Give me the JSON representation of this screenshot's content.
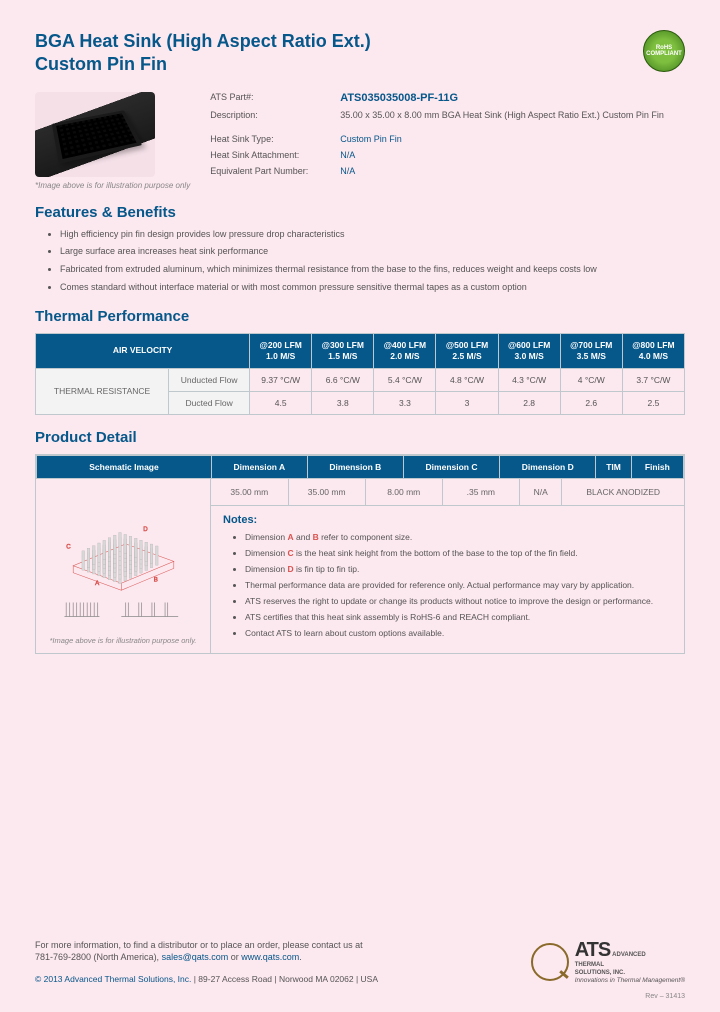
{
  "header": {
    "title_line1": "BGA Heat Sink (High Aspect Ratio Ext.)",
    "title_line2": "Custom Pin Fin",
    "rohs": "RoHS COMPLIANT"
  },
  "specs": {
    "part_label": "ATS Part#:",
    "part_value": "ATS035035008-PF-11G",
    "desc_label": "Description:",
    "desc_value": "35.00 x 35.00 x 8.00 mm  BGA Heat Sink (High Aspect Ratio Ext.) Custom Pin Fin",
    "type_label": "Heat Sink Type:",
    "type_value": "Custom Pin Fin",
    "attach_label": "Heat Sink Attachment:",
    "attach_value": "N/A",
    "equiv_label": "Equivalent Part Number:",
    "equiv_value": "N/A",
    "image_caption": "*Image above is for illustration purpose only"
  },
  "sections": {
    "features": "Features & Benefits",
    "thermal": "Thermal Performance",
    "detail": "Product Detail"
  },
  "features": [
    "High efficiency pin fin design provides low pressure drop characteristics",
    "Large surface area increases heat sink performance",
    "Fabricated from extruded aluminum, which minimizes thermal resistance from the base to the fins, reduces weight and keeps costs low",
    "Comes standard without interface material or with most common pressure sensitive thermal tapes as a custom option"
  ],
  "thermal_table": {
    "air_header": "AIR VELOCITY",
    "cols": [
      {
        "t": "@200 LFM",
        "b": "1.0 M/S"
      },
      {
        "t": "@300 LFM",
        "b": "1.5 M/S"
      },
      {
        "t": "@400 LFM",
        "b": "2.0 M/S"
      },
      {
        "t": "@500 LFM",
        "b": "2.5 M/S"
      },
      {
        "t": "@600 LFM",
        "b": "3.0 M/S"
      },
      {
        "t": "@700 LFM",
        "b": "3.5 M/S"
      },
      {
        "t": "@800 LFM",
        "b": "4.0 M/S"
      }
    ],
    "group": "THERMAL RESISTANCE",
    "row1_label": "Unducted Flow",
    "row1": [
      "9.37 °C/W",
      "6.6 °C/W",
      "5.4 °C/W",
      "4.8 °C/W",
      "4.3 °C/W",
      "4 °C/W",
      "3.7 °C/W"
    ],
    "row2_label": "Ducted Flow",
    "row2": [
      "4.5",
      "3.8",
      "3.3",
      "3",
      "2.8",
      "2.6",
      "2.5"
    ]
  },
  "detail_table": {
    "headers": [
      "Schematic Image",
      "Dimension A",
      "Dimension B",
      "Dimension C",
      "Dimension D",
      "TIM",
      "Finish"
    ],
    "values": [
      "35.00 mm",
      "35.00 mm",
      "8.00 mm",
      ".35 mm",
      "N/A",
      "BLACK ANODIZED"
    ],
    "schem_caption": "*Image above is for illustration purpose only."
  },
  "notes": {
    "title": "Notes:",
    "items": [
      {
        "pre": "Dimension ",
        "a": "A",
        "mid": " and ",
        "b": "B",
        "post": " refer to component size."
      },
      {
        "pre": "Dimension ",
        "a": "C",
        "post": " is the heat sink height from the bottom of the base to the top of the fin field."
      },
      {
        "pre": "Dimension ",
        "a": "D",
        "post": " is fin tip to fin tip."
      },
      {
        "text": "Thermal performance data are provided for reference only. Actual performance may vary by application."
      },
      {
        "text": "ATS reserves the right to update or change its products without notice to improve the design or performance."
      },
      {
        "text": "ATS certifies that this heat sink assembly is RoHS-6 and REACH compliant."
      },
      {
        "text": "Contact ATS to learn about custom options available."
      }
    ]
  },
  "footer": {
    "line1": "For more information, to find a distributor or to place an order, please contact us at",
    "phone": "781-769-2800 (North America), ",
    "email": "sales@qats.com",
    "or": " or ",
    "web": "www.qats.com",
    "copyright": "© 2013 Advanced Thermal Solutions, Inc.",
    "address": " | 89-27 Access Road | Norwood MA   02062 | USA",
    "logo_main": "ATS",
    "logo_sub1": "ADVANCED",
    "logo_sub2": "THERMAL",
    "logo_sub3": "SOLUTIONS, INC.",
    "logo_tag": "Innovations in Thermal Management®",
    "rev": "Rev – 31413"
  }
}
